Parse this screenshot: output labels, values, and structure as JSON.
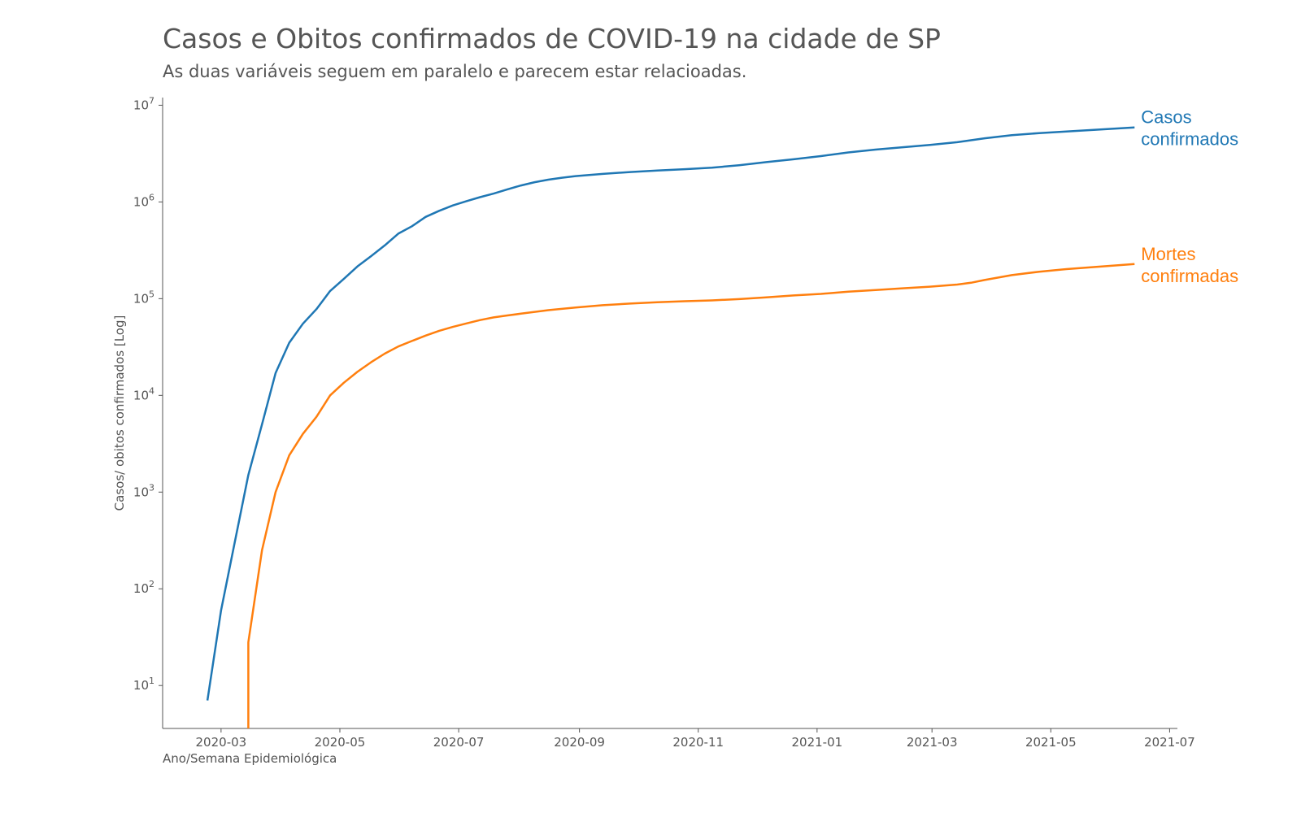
{
  "chart_data": {
    "type": "line",
    "title": "Casos e Obitos confirmados de COVID-19 na cidade de SP",
    "subtitle": "As duas variáveis seguem em paralelo e parecem estar relacioadas.",
    "xlabel": "Ano/Semana Epidemiológica",
    "ylabel": "Casos/ obitos confirmados [Log]",
    "yscale": "log",
    "xlim": [
      "2020-01-31",
      "2021-07-05"
    ],
    "ylim": [
      3.6,
      12000000
    ],
    "x_ticks": [
      "2020-03",
      "2020-05",
      "2020-07",
      "2020-09",
      "2020-11",
      "2021-01",
      "2021-03",
      "2021-05",
      "2021-07"
    ],
    "y_ticks": [
      {
        "value": 10,
        "base": "10",
        "exp": "1"
      },
      {
        "value": 100,
        "base": "10",
        "exp": "2"
      },
      {
        "value": 1000,
        "base": "10",
        "exp": "3"
      },
      {
        "value": 10000,
        "base": "10",
        "exp": "4"
      },
      {
        "value": 100000,
        "base": "10",
        "exp": "5"
      },
      {
        "value": 1000000,
        "base": "10",
        "exp": "6"
      },
      {
        "value": 10000000,
        "base": "10",
        "exp": "7"
      }
    ],
    "grid": false,
    "legend": "direct-labels-right",
    "series": [
      {
        "name": "Casos confirmados",
        "label_lines": [
          "Casos",
          "confirmados"
        ],
        "color": "#1f77b4",
        "points": [
          [
            "2020-02-23",
            7
          ],
          [
            "2020-03-01",
            60
          ],
          [
            "2020-03-08",
            300
          ],
          [
            "2020-03-15",
            1500
          ],
          [
            "2020-03-22",
            5000
          ],
          [
            "2020-03-29",
            17000
          ],
          [
            "2020-04-05",
            35000
          ],
          [
            "2020-04-12",
            55000
          ],
          [
            "2020-04-19",
            78000
          ],
          [
            "2020-04-26",
            120000
          ],
          [
            "2020-05-03",
            160000
          ],
          [
            "2020-05-10",
            215000
          ],
          [
            "2020-05-17",
            275000
          ],
          [
            "2020-05-24",
            355000
          ],
          [
            "2020-05-31",
            470000
          ],
          [
            "2020-06-07",
            560000
          ],
          [
            "2020-06-14",
            700000
          ],
          [
            "2020-06-21",
            810000
          ],
          [
            "2020-06-28",
            920000
          ],
          [
            "2020-07-05",
            1020000
          ],
          [
            "2020-07-12",
            1120000
          ],
          [
            "2020-07-19",
            1220000
          ],
          [
            "2020-07-26",
            1350000
          ],
          [
            "2020-08-02",
            1480000
          ],
          [
            "2020-08-09",
            1600000
          ],
          [
            "2020-08-16",
            1700000
          ],
          [
            "2020-08-23",
            1780000
          ],
          [
            "2020-08-30",
            1850000
          ],
          [
            "2020-09-13",
            1950000
          ],
          [
            "2020-09-27",
            2040000
          ],
          [
            "2020-10-11",
            2110000
          ],
          [
            "2020-10-25",
            2180000
          ],
          [
            "2020-11-08",
            2260000
          ],
          [
            "2020-11-22",
            2400000
          ],
          [
            "2020-12-06",
            2580000
          ],
          [
            "2020-12-20",
            2760000
          ],
          [
            "2021-01-03",
            2980000
          ],
          [
            "2021-01-17",
            3250000
          ],
          [
            "2021-01-31",
            3480000
          ],
          [
            "2021-02-14",
            3680000
          ],
          [
            "2021-02-28",
            3880000
          ],
          [
            "2021-03-14",
            4150000
          ],
          [
            "2021-03-28",
            4550000
          ],
          [
            "2021-04-11",
            4900000
          ],
          [
            "2021-04-25",
            5150000
          ],
          [
            "2021-05-09",
            5350000
          ],
          [
            "2021-05-23",
            5550000
          ],
          [
            "2021-06-13",
            5900000
          ]
        ]
      },
      {
        "name": "Mortes confirmadas",
        "label_lines": [
          "Mortes",
          "confirmadas"
        ],
        "color": "#ff7f0e",
        "points": [
          [
            "2020-03-15",
            3.6
          ],
          [
            "2020-03-15",
            28
          ],
          [
            "2020-03-22",
            250
          ],
          [
            "2020-03-29",
            1000
          ],
          [
            "2020-04-05",
            2400
          ],
          [
            "2020-04-12",
            4000
          ],
          [
            "2020-04-19",
            6000
          ],
          [
            "2020-04-26",
            10000
          ],
          [
            "2020-05-03",
            13500
          ],
          [
            "2020-05-10",
            17500
          ],
          [
            "2020-05-17",
            22000
          ],
          [
            "2020-05-24",
            27000
          ],
          [
            "2020-05-31",
            32000
          ],
          [
            "2020-06-07",
            36500
          ],
          [
            "2020-06-14",
            41500
          ],
          [
            "2020-06-21",
            46500
          ],
          [
            "2020-06-28",
            51000
          ],
          [
            "2020-07-05",
            55500
          ],
          [
            "2020-07-12",
            60000
          ],
          [
            "2020-07-19",
            64000
          ],
          [
            "2020-07-26",
            67000
          ],
          [
            "2020-08-02",
            70000
          ],
          [
            "2020-08-16",
            76000
          ],
          [
            "2020-08-30",
            81000
          ],
          [
            "2020-09-13",
            85500
          ],
          [
            "2020-09-27",
            89000
          ],
          [
            "2020-10-11",
            92000
          ],
          [
            "2020-10-25",
            94000
          ],
          [
            "2020-11-08",
            96000
          ],
          [
            "2020-11-22",
            99000
          ],
          [
            "2020-12-06",
            103000
          ],
          [
            "2020-12-20",
            108000
          ],
          [
            "2021-01-03",
            112000
          ],
          [
            "2021-01-17",
            118000
          ],
          [
            "2021-01-31",
            123000
          ],
          [
            "2021-02-14",
            128000
          ],
          [
            "2021-02-28",
            133000
          ],
          [
            "2021-03-14",
            140000
          ],
          [
            "2021-03-21",
            146000
          ],
          [
            "2021-03-28",
            156000
          ],
          [
            "2021-04-11",
            175000
          ],
          [
            "2021-04-25",
            190000
          ],
          [
            "2021-05-09",
            202000
          ],
          [
            "2021-05-23",
            212000
          ],
          [
            "2021-06-13",
            228000
          ]
        ]
      }
    ]
  }
}
